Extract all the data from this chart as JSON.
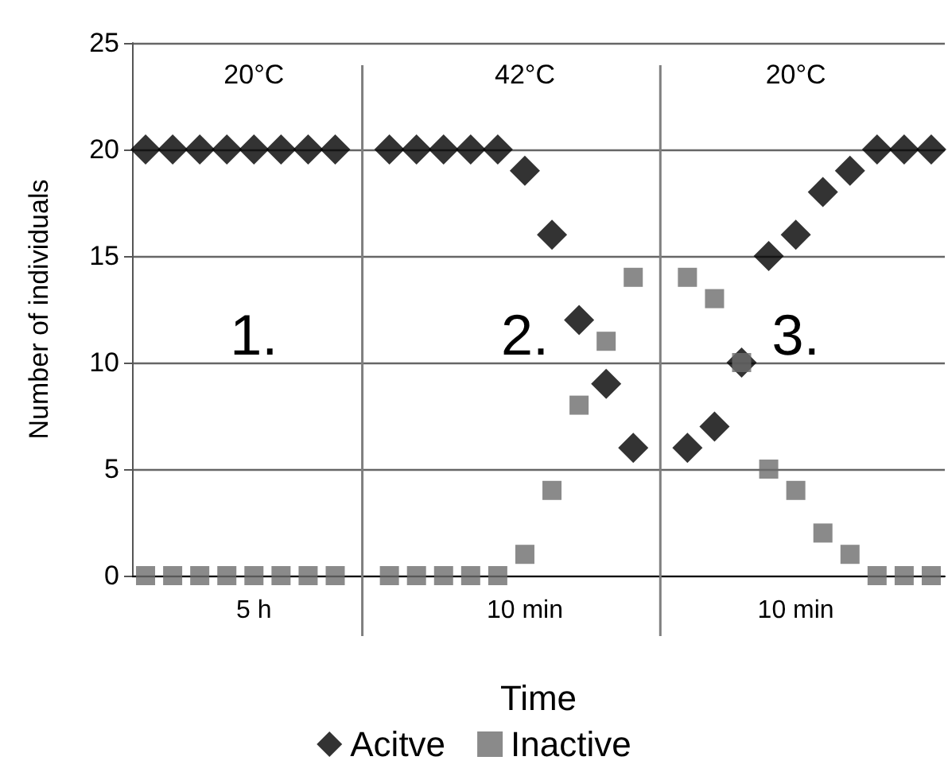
{
  "chart_data": {
    "type": "scatter",
    "xlabel": "Time",
    "ylabel": "Number of individuals",
    "annotations": [
      "20°C",
      "42°C",
      "20°C",
      "1.",
      "2.",
      "3.",
      "5 h",
      "10 min",
      "10 min"
    ],
    "categories": [
      null,
      null,
      null,
      null,
      null,
      null,
      null,
      null,
      null,
      null,
      null,
      null,
      null,
      null,
      null,
      null,
      null,
      null,
      null,
      null,
      null,
      null,
      null,
      null,
      null,
      null,
      null,
      null,
      null,
      null
    ],
    "ylim": [
      0,
      25
    ],
    "yticks": [
      0,
      5,
      10,
      15,
      20,
      25
    ],
    "tick_labels": "y",
    "grid": "y",
    "legend": "bottom",
    "series": [
      {
        "name": "Acitve",
        "color": "#000000",
        "marker": "diamond",
        "values": [
          20,
          20,
          20,
          20,
          20,
          20,
          20,
          20,
          null,
          20,
          20,
          20,
          20,
          20,
          19,
          16,
          12,
          9,
          6,
          null,
          6,
          7,
          10,
          15,
          16,
          18,
          19,
          20,
          20,
          20
        ]
      },
      {
        "name": "Inactive",
        "color": "#6d6d6d",
        "marker": "square",
        "values": [
          0,
          0,
          0,
          0,
          0,
          0,
          0,
          0,
          null,
          0,
          0,
          0,
          0,
          0,
          1,
          4,
          8,
          11,
          14,
          null,
          14,
          13,
          10,
          5,
          4,
          2,
          1,
          0,
          0,
          0
        ]
      }
    ]
  }
}
